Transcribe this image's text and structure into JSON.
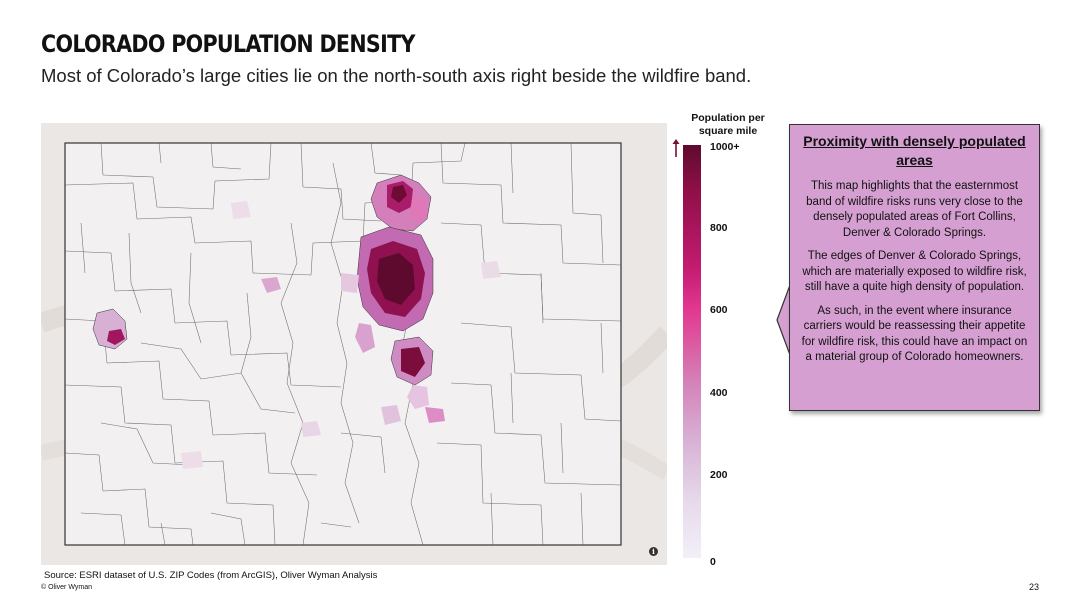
{
  "header": {
    "title": "COLORADO POPULATION DENSITY",
    "subtitle": "Most of Colorado’s large cities lie on the north-south axis right beside the wildfire band."
  },
  "legend": {
    "title": "Population per square mile",
    "ticks": [
      "1000+",
      "800",
      "600",
      "400",
      "200",
      "0"
    ],
    "scale_min": 0,
    "scale_max": 1000,
    "color_high": "#5e0a2e",
    "color_mid": "#e2388f",
    "color_low": "#f3eff7"
  },
  "callout": {
    "heading": "Proximity with densely populated areas",
    "paragraphs": [
      "This map highlights that the easternmost band of wildfire risks runs very close to the densely populated areas of Fort Collins, Denver & Colorado Springs.",
      "The edges of Denver & Colorado Springs, which are materially exposed to wildfire risk, still have a quite high density of population.",
      "As such, in the event where insurance carriers would be reassessing their appetite for wildfire risk, this could have an impact on a material group of Colorado homeowners."
    ],
    "background_color": "#d5a0d1"
  },
  "map": {
    "basemap_color": "#ece8e6",
    "state_fill": "#f1eef0",
    "boundary_color": "#4d4d4d",
    "info_glyph": "i"
  },
  "footer": {
    "source": "Source: ESRI dataset of U.S. ZIP Codes (from ArcGIS), Oliver Wyman Analysis",
    "copyright": "© Oliver Wyman",
    "page_number": "23"
  }
}
